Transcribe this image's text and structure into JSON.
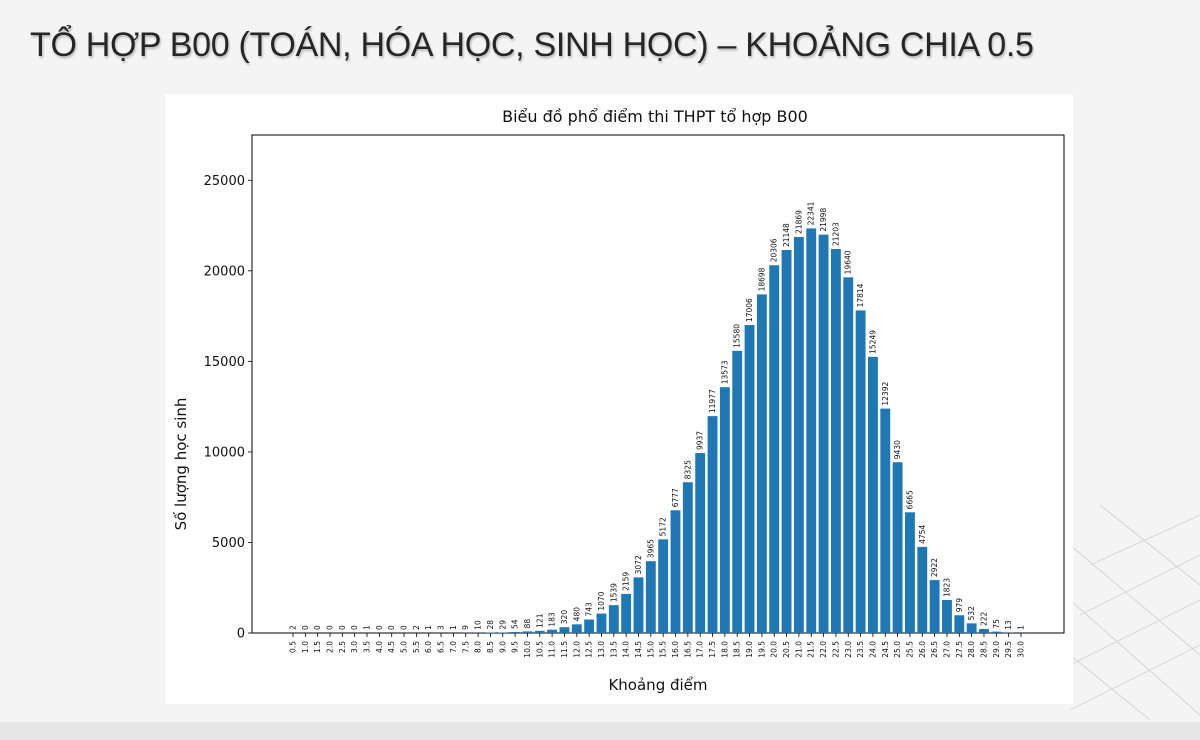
{
  "slide": {
    "title": "TỔ HỢP B00 (TOÁN, HÓA HỌC, SINH HỌC) – KHOẢNG CHIA 0.5"
  },
  "colors": {
    "bar": "#1f77b4",
    "background": "#f4f4f4"
  },
  "chart_data": {
    "type": "bar",
    "title": "Biểu đồ phổ điểm thi THPT tổ hợp B00",
    "xlabel": "Khoảng điểm",
    "ylabel": "Số lượng học sinh",
    "ylim": [
      0,
      27500
    ],
    "yticks": [
      "0",
      "5000",
      "10000",
      "15000",
      "20000",
      "25000"
    ],
    "grid": false,
    "categories": [
      "0.5",
      "1.0",
      "1.5",
      "2.0",
      "2.5",
      "3.0",
      "3.5",
      "4.0",
      "4.5",
      "5.0",
      "5.5",
      "6.0",
      "6.5",
      "7.0",
      "7.5",
      "8.0",
      "8.5",
      "9.0",
      "9.5",
      "10.0",
      "10.5",
      "11.0",
      "11.5",
      "12.0",
      "12.5",
      "13.0",
      "13.5",
      "14.0",
      "14.5",
      "15.0",
      "15.5",
      "16.0",
      "16.5",
      "17.0",
      "17.5",
      "18.0",
      "18.5",
      "19.0",
      "19.5",
      "20.0",
      "20.5",
      "21.0",
      "21.5",
      "22.0",
      "22.5",
      "23.0",
      "23.5",
      "24.0",
      "24.5",
      "25.0",
      "25.5",
      "26.0",
      "26.5",
      "27.0",
      "27.5",
      "28.0",
      "28.5",
      "29.0",
      "29.5",
      "30.0"
    ],
    "values": [
      2,
      0,
      0,
      0,
      0,
      0,
      1,
      0,
      0,
      0,
      2,
      1,
      3,
      1,
      9,
      10,
      28,
      29,
      54,
      88,
      121,
      183,
      320,
      480,
      743,
      1070,
      1539,
      2159,
      3072,
      3965,
      5172,
      6777,
      8325,
      9937,
      11977,
      13573,
      15580,
      17006,
      18698,
      20306,
      21148,
      21869,
      22341,
      21998,
      21203,
      19640,
      17814,
      15249,
      12392,
      9430,
      6665,
      4754,
      2922,
      1823,
      979,
      532,
      222,
      75,
      13,
      1
    ]
  }
}
